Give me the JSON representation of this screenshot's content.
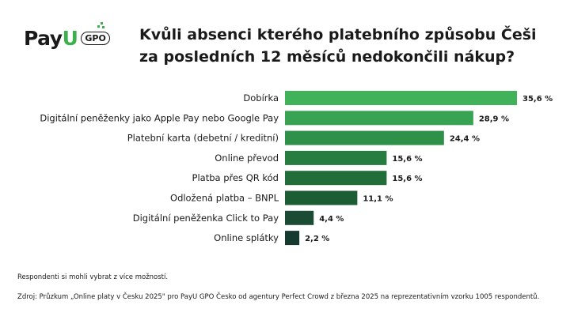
{
  "logo": {
    "brand": "Pay",
    "u": "U",
    "badge": "GPO"
  },
  "header": {
    "title_line1": "Kvůli absenci kterého platebního způsobu Češi",
    "title_line2": "za posledních 12 měsíců nedokončili nákup?"
  },
  "chart_data": {
    "type": "bar",
    "orientation": "horizontal",
    "categories": [
      "Dobírka",
      "Digitální peněženky jako Apple Pay nebo Google Pay",
      "Platební karta (debetní / kreditní)",
      "Online převod",
      "Platba přes QR kód",
      "Odložená platba – BNPL",
      "Digitální peněženka Click to Pay",
      "Online splátky"
    ],
    "values": [
      35.6,
      28.9,
      24.4,
      15.6,
      15.6,
      11.1,
      4.4,
      2.2
    ],
    "value_labels": [
      "35,6 %",
      "28,9 %",
      "24,4 %",
      "15,6 %",
      "15,6 %",
      "11,1 %",
      "4,4 %",
      "2,2 %"
    ],
    "colors": [
      "#3fb25a",
      "#38a352",
      "#2f9149",
      "#277d3f",
      "#226d39",
      "#1d5d33",
      "#1b4a35",
      "#173a30"
    ],
    "xlim": [
      0,
      35.6
    ]
  },
  "notes": {
    "respondents": "Respondenti si mohli vybrat z více možností.",
    "source": "Zdroj: Průzkum „Online platy v Česku 2025\" pro PayU GPO Česko od agentury Perfect Crowd z března 2025 na reprezentativním vzorku 1005 respondentů."
  }
}
